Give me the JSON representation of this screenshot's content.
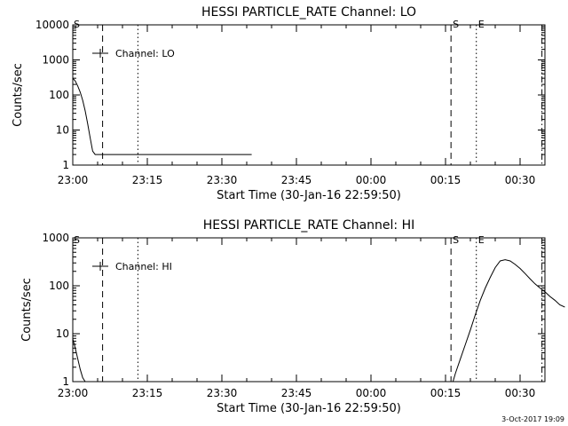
{
  "chart_data": [
    {
      "type": "line",
      "title": "HESSI PARTICLE_RATE Channel: LO",
      "xlabel": "Start Time (30-Jan-16 22:59:50)",
      "ylabel": "Counts/sec",
      "xlim_minutes": [
        0,
        36
      ],
      "ylim": [
        1,
        10000
      ],
      "yscale": "log",
      "grid": false,
      "legend": "top-left",
      "xticks": [
        {
          "m": 0,
          "label": "23:00"
        },
        {
          "m": 15,
          "label": "23:15"
        },
        {
          "m": 30,
          "label": "23:30"
        },
        {
          "m": 45,
          "label": "23:45"
        },
        {
          "m": 60,
          "label": "00:00"
        },
        {
          "m": 75,
          "label": "00:15"
        },
        {
          "m": 90,
          "label": "00:30"
        }
      ],
      "yticks": [
        {
          "v": 1,
          "label": "1"
        },
        {
          "v": 10,
          "label": "10"
        },
        {
          "v": 100,
          "label": "100"
        },
        {
          "v": 1000,
          "label": "1000"
        },
        {
          "v": 10000,
          "label": "10000"
        }
      ],
      "series": [
        {
          "name": "Channel: LO",
          "x": [
            0,
            0.5,
            1,
            1.5,
            2,
            2.5,
            3,
            3.5,
            4,
            4.5,
            5,
            5.5,
            5.8,
            6,
            7,
            8,
            9,
            10,
            11,
            12,
            13,
            14,
            15,
            16,
            17,
            18,
            19,
            20,
            21,
            22,
            23,
            24,
            25,
            26,
            27,
            28,
            29,
            30,
            31,
            32,
            33,
            34,
            35,
            36
          ],
          "y": [
            300,
            250,
            180,
            120,
            70,
            35,
            15,
            6,
            2.5,
            2,
            2,
            2,
            2,
            2,
            2,
            2,
            2,
            2,
            2,
            2,
            2,
            2,
            2,
            2,
            2,
            2,
            2,
            2,
            2,
            2,
            2,
            2,
            2,
            2,
            2,
            2,
            2,
            2,
            2,
            2,
            2,
            2,
            2,
            2
          ]
        }
      ],
      "markers": [
        {
          "label": "S",
          "m": 0,
          "style": "solid"
        },
        {
          "label": "",
          "m": 6,
          "style": "dashed"
        },
        {
          "label": "",
          "m": 13.1,
          "style": "dotted"
        },
        {
          "label": "S",
          "m": 76.1,
          "style": "dashed"
        },
        {
          "label": "E",
          "m": 81.2,
          "style": "dotted"
        },
        {
          "label": "",
          "m": 94.4,
          "style": "dashdot"
        }
      ]
    },
    {
      "type": "line",
      "title": "HESSI PARTICLE_RATE Channel: HI",
      "xlabel": "Start Time (30-Jan-16 22:59:50)",
      "ylabel": "Counts/sec",
      "ylim": [
        1,
        1000
      ],
      "yscale": "log",
      "grid": false,
      "legend": "top-left",
      "xticks": [
        {
          "m": 0,
          "label": "23:00"
        },
        {
          "m": 15,
          "label": "23:15"
        },
        {
          "m": 30,
          "label": "23:30"
        },
        {
          "m": 45,
          "label": "23:45"
        },
        {
          "m": 60,
          "label": "00:00"
        },
        {
          "m": 75,
          "label": "00:15"
        },
        {
          "m": 90,
          "label": "00:30"
        }
      ],
      "yticks": [
        {
          "v": 1,
          "label": "1"
        },
        {
          "v": 10,
          "label": "10"
        },
        {
          "v": 100,
          "label": "100"
        },
        {
          "v": 1000,
          "label": "1000"
        }
      ],
      "series": [
        {
          "name": "Channel: HI",
          "x": [
            0,
            0.5,
            1,
            1.5,
            2,
            2.5,
            76.5,
            77,
            78,
            79,
            80,
            81,
            82,
            83,
            84,
            85,
            86,
            87,
            88,
            89,
            90,
            91,
            92,
            93,
            94,
            95,
            96,
            97,
            98,
            99
          ],
          "y": [
            7.8,
            5.0,
            3.0,
            1.8,
            1.2,
            1.0,
            1.0,
            1.5,
            3.0,
            6.0,
            12,
            25,
            50,
            90,
            150,
            240,
            330,
            350,
            330,
            280,
            230,
            180,
            140,
            110,
            90,
            75,
            60,
            50,
            40,
            36
          ]
        }
      ],
      "markers": [
        {
          "label": "S",
          "m": 0,
          "style": "solid"
        },
        {
          "label": "",
          "m": 6,
          "style": "dashed"
        },
        {
          "label": "",
          "m": 13.1,
          "style": "dotted"
        },
        {
          "label": "S",
          "m": 76.1,
          "style": "dashed"
        },
        {
          "label": "E",
          "m": 81.2,
          "style": "dotted"
        },
        {
          "label": "",
          "m": 94.4,
          "style": "dashdot"
        }
      ]
    }
  ],
  "timestamp": "3-Oct-2017 19:09"
}
